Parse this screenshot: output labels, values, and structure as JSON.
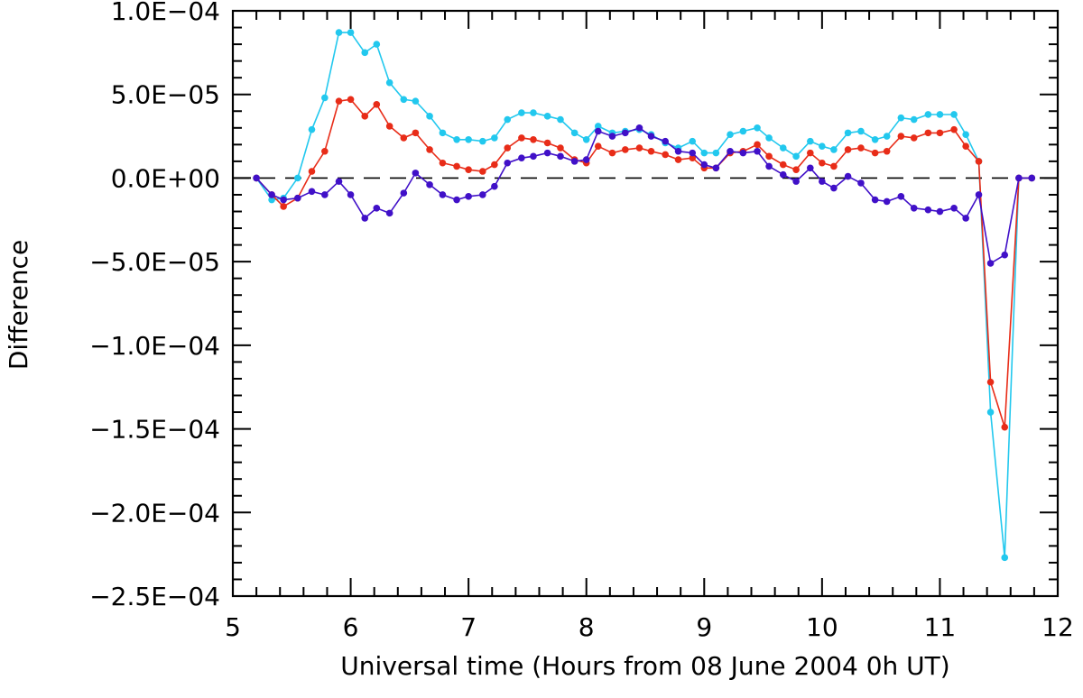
{
  "chart_data": {
    "type": "line",
    "title": "",
    "xlabel": "Universal time (Hours from 08 June 2004 0h UT)",
    "ylabel": "Difference",
    "xlim": [
      5,
      12
    ],
    "ylim": [
      -0.00025,
      0.0001
    ],
    "x_ticks": [
      5,
      6,
      7,
      8,
      9,
      10,
      11,
      12
    ],
    "x_tick_labels": [
      "5",
      "6",
      "7",
      "8",
      "9",
      "10",
      "11",
      "12"
    ],
    "y_ticks": [
      0.0001,
      5e-05,
      0,
      -5e-05,
      -0.0001,
      -0.00015,
      -0.0002,
      -0.00025
    ],
    "y_tick_labels": [
      "1.0E−04",
      "5.0E−05",
      "0.0E+00",
      "−5.0E−05",
      "−1.0E−04",
      "−1.5E−04",
      "−2.0E−04",
      "−2.5E−04"
    ],
    "reference_line": {
      "y": 0,
      "style": "dashed"
    },
    "grid": false,
    "legend": "none",
    "x": [
      5.2,
      5.33,
      5.43,
      5.55,
      5.67,
      5.78,
      5.9,
      6.0,
      6.12,
      6.22,
      6.33,
      6.45,
      6.55,
      6.67,
      6.78,
      6.9,
      7.0,
      7.12,
      7.22,
      7.33,
      7.45,
      7.55,
      7.67,
      7.78,
      7.9,
      8.0,
      8.1,
      8.22,
      8.33,
      8.45,
      8.55,
      8.67,
      8.78,
      8.9,
      9.0,
      9.1,
      9.22,
      9.33,
      9.45,
      9.55,
      9.67,
      9.78,
      9.9,
      10.0,
      10.1,
      10.22,
      10.33,
      10.45,
      10.55,
      10.67,
      10.78,
      10.9,
      11.0,
      11.12,
      11.22,
      11.33,
      11.43,
      11.55,
      11.67,
      11.78
    ],
    "series": [
      {
        "color": "#22c8ee",
        "values": [
          0,
          -1.3e-05,
          -1.2e-05,
          0.0,
          2.9e-05,
          4.8e-05,
          8.7e-05,
          8.7e-05,
          7.5e-05,
          8e-05,
          5.7e-05,
          4.7e-05,
          4.6e-05,
          3.7e-05,
          2.7e-05,
          2.3e-05,
          2.3e-05,
          2.2e-05,
          2.4e-05,
          3.5e-05,
          3.9e-05,
          3.9e-05,
          3.7e-05,
          3.5e-05,
          2.7e-05,
          2.3e-05,
          3.1e-05,
          2.7e-05,
          2.8e-05,
          2.9e-05,
          2.6e-05,
          2.1e-05,
          1.8e-05,
          2.2e-05,
          1.5e-05,
          1.5e-05,
          2.6e-05,
          2.8e-05,
          3e-05,
          2.4e-05,
          1.8e-05,
          1.3e-05,
          2.2e-05,
          1.9e-05,
          1.7e-05,
          2.7e-05,
          2.8e-05,
          2.3e-05,
          2.5e-05,
          3.6e-05,
          3.5e-05,
          3.8e-05,
          3.8e-05,
          3.8e-05,
          2.6e-05,
          1e-05,
          -0.00014,
          -0.000227,
          0,
          0
        ]
      },
      {
        "color": "#e82c18",
        "values": [
          0,
          -1e-05,
          -1.7e-05,
          -1.2e-05,
          4e-06,
          1.6e-05,
          4.6e-05,
          4.7e-05,
          3.7e-05,
          4.4e-05,
          3.1e-05,
          2.4e-05,
          2.7e-05,
          1.7e-05,
          9e-06,
          7e-06,
          5e-06,
          4e-06,
          8e-06,
          1.8e-05,
          2.4e-05,
          2.3e-05,
          2.1e-05,
          1.8e-05,
          1.1e-05,
          9e-06,
          1.9e-05,
          1.5e-05,
          1.7e-05,
          1.8e-05,
          1.6e-05,
          1.4e-05,
          1.1e-05,
          1.2e-05,
          6e-06,
          6e-06,
          1.5e-05,
          1.6e-05,
          2e-05,
          1.3e-05,
          8e-06,
          5e-06,
          1.5e-05,
          9e-06,
          7e-06,
          1.7e-05,
          1.8e-05,
          1.5e-05,
          1.6e-05,
          2.5e-05,
          2.4e-05,
          2.7e-05,
          2.7e-05,
          2.9e-05,
          1.9e-05,
          1e-05,
          -0.000122,
          -0.000149,
          0,
          0
        ]
      },
      {
        "color": "#4010c8",
        "values": [
          0,
          -1e-05,
          -1.3e-05,
          -1.2e-05,
          -8e-06,
          -1e-05,
          -2e-06,
          -1e-05,
          -2.4e-05,
          -1.8e-05,
          -2.1e-05,
          -9e-06,
          3e-06,
          -4e-06,
          -1e-05,
          -1.3e-05,
          -1.1e-05,
          -1e-05,
          -5e-06,
          9e-06,
          1.2e-05,
          1.3e-05,
          1.5e-05,
          1.3e-05,
          1e-05,
          1.1e-05,
          2.8e-05,
          2.5e-05,
          2.7e-05,
          3e-05,
          2.5e-05,
          2.2e-05,
          1.6e-05,
          1.5e-05,
          8e-06,
          6e-06,
          1.6e-05,
          1.5e-05,
          1.6e-05,
          7e-06,
          2e-06,
          -2e-06,
          6e-06,
          -2e-06,
          -6e-06,
          1e-06,
          -3e-06,
          -1.3e-05,
          -1.4e-05,
          -1.1e-05,
          -1.8e-05,
          -1.9e-05,
          -2e-05,
          -1.8e-05,
          -2.4e-05,
          -1e-05,
          -5.1e-05,
          -4.6e-05,
          0,
          0
        ]
      }
    ]
  }
}
